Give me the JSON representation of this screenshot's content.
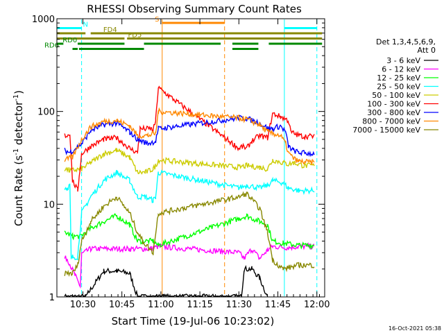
{
  "chart_data": {
    "type": "line",
    "title": "RHESSI Observing Summary Count Rates",
    "xlabel": "Start Time (19-Jul-06 10:23:02)",
    "ylabel_main": "Count Rate (s",
    "ylabel_sup1": "-1",
    "ylabel_mid": " detector",
    "ylabel_sup2": "-1",
    "ylabel_end": ")",
    "yscale": "log",
    "ylim": [
      1,
      1000
    ],
    "xlim_min": [
      -3,
      100
    ],
    "x_ticks": [
      {
        "m": 7,
        "label": "10:30"
      },
      {
        "m": 22,
        "label": "10:45"
      },
      {
        "m": 37,
        "label": "11:00"
      },
      {
        "m": 52,
        "label": "11:15"
      },
      {
        "m": 67,
        "label": "11:30"
      },
      {
        "m": 82,
        "label": "11:45"
      },
      {
        "m": 97,
        "label": "12:00"
      }
    ],
    "y_ticks": [
      {
        "v": 1,
        "label": "1"
      },
      {
        "v": 10,
        "label": "10"
      },
      {
        "v": 100,
        "label": "100"
      },
      {
        "v": 1000,
        "label": "1000"
      }
    ],
    "legend_header": [
      "Det 1,3,4,5,6,9,",
      "Att 0"
    ],
    "legend_position": "right",
    "series": [
      {
        "name": "3 - 6 keV",
        "color": "#000000",
        "values": [
          [
            0,
            1
          ],
          [
            8,
            1
          ],
          [
            9,
            1.1
          ],
          [
            15,
            1.9
          ],
          [
            20,
            1.9
          ],
          [
            25,
            1.8
          ],
          [
            28,
            1.0
          ],
          [
            68,
            1.0
          ],
          [
            69,
            2.0
          ],
          [
            72,
            2.0
          ],
          [
            75,
            1.6
          ],
          [
            78,
            1.0
          ]
        ]
      },
      {
        "name": "6 - 12 keV",
        "color": "#ff00ff",
        "values": [
          [
            0,
            2.6
          ],
          [
            1,
            2.6
          ],
          [
            4,
            1.7
          ],
          [
            6,
            1.3
          ],
          [
            6.5,
            2.9
          ],
          [
            10,
            3.3
          ],
          [
            15,
            3.3
          ],
          [
            25,
            3.3
          ],
          [
            33,
            3.3
          ],
          [
            36,
            3.5
          ],
          [
            67,
            3.0
          ],
          [
            69,
            2.6
          ],
          [
            72,
            3.3
          ],
          [
            75,
            2.6
          ],
          [
            78,
            3.2
          ],
          [
            80,
            3.5
          ],
          [
            86,
            3.4
          ],
          [
            90,
            3.5
          ],
          [
            96,
            3.5
          ]
        ]
      },
      {
        "name": "12 - 25 keV",
        "color": "#00ff00",
        "values": [
          [
            0,
            5
          ],
          [
            3,
            4.5
          ],
          [
            6,
            4.5
          ],
          [
            10,
            5.5
          ],
          [
            15,
            6.5
          ],
          [
            20,
            7.5
          ],
          [
            25,
            6
          ],
          [
            28,
            4
          ],
          [
            30,
            4
          ],
          [
            34,
            4
          ],
          [
            36,
            3.6
          ],
          [
            67,
            7
          ],
          [
            70,
            7.5
          ],
          [
            75,
            6.5
          ],
          [
            78,
            6
          ],
          [
            80,
            4
          ],
          [
            84,
            3.8
          ],
          [
            90,
            3.6
          ],
          [
            96,
            3.6
          ]
        ]
      },
      {
        "name": "25 - 50 keV",
        "color": "#00ffff",
        "values": [
          [
            0,
            15
          ],
          [
            1,
            15
          ],
          [
            2,
            16
          ],
          [
            2.5,
            2.5
          ],
          [
            3,
            2.7
          ],
          [
            5,
            2.7
          ],
          [
            6.5,
            8
          ],
          [
            10,
            12
          ],
          [
            15,
            18
          ],
          [
            20,
            22
          ],
          [
            25,
            18
          ],
          [
            28,
            12
          ],
          [
            31,
            12
          ],
          [
            34,
            11
          ],
          [
            35,
            12
          ],
          [
            36,
            22
          ],
          [
            67,
            15
          ],
          [
            70,
            16
          ],
          [
            75,
            15
          ],
          [
            78,
            16
          ],
          [
            80,
            18
          ],
          [
            84,
            17
          ],
          [
            86,
            15
          ],
          [
            90,
            14
          ],
          [
            96,
            14
          ]
        ]
      },
      {
        "name": "50 - 100 keV",
        "color": "#cccc00",
        "values": [
          [
            0,
            24
          ],
          [
            2,
            23
          ],
          [
            6.5,
            24
          ],
          [
            10,
            28
          ],
          [
            15,
            35
          ],
          [
            20,
            38
          ],
          [
            25,
            32
          ],
          [
            28,
            22
          ],
          [
            31,
            22
          ],
          [
            34,
            24
          ],
          [
            35,
            26
          ],
          [
            36,
            30
          ],
          [
            67,
            25
          ],
          [
            70,
            26
          ],
          [
            75,
            25
          ],
          [
            78,
            24
          ],
          [
            80,
            30
          ],
          [
            84,
            28
          ],
          [
            86,
            27
          ],
          [
            88,
            28
          ],
          [
            92,
            26
          ],
          [
            96,
            26
          ]
        ]
      },
      {
        "name": "100 - 300 keV",
        "color": "#ff0000",
        "values": [
          [
            0,
            55
          ],
          [
            1,
            55
          ],
          [
            2,
            58
          ],
          [
            3,
            18
          ],
          [
            5,
            14
          ],
          [
            6.5,
            35
          ],
          [
            10,
            42
          ],
          [
            15,
            50
          ],
          [
            20,
            52
          ],
          [
            25,
            40
          ],
          [
            28,
            36
          ],
          [
            29,
            65
          ],
          [
            33,
            65
          ],
          [
            34,
            62
          ],
          [
            35,
            80
          ],
          [
            36,
            180
          ],
          [
            67,
            40
          ],
          [
            68,
            42
          ],
          [
            70,
            40
          ],
          [
            72,
            48
          ],
          [
            75,
            55
          ],
          [
            78,
            52
          ],
          [
            80,
            95
          ],
          [
            83,
            88
          ],
          [
            86,
            80
          ],
          [
            87,
            60
          ],
          [
            90,
            55
          ],
          [
            92,
            54
          ],
          [
            96,
            54
          ]
        ]
      },
      {
        "name": "300 - 800 keV",
        "color": "#0000ff",
        "values": [
          [
            0,
            38
          ],
          [
            2,
            36
          ],
          [
            6.5,
            45
          ],
          [
            10,
            62
          ],
          [
            15,
            72
          ],
          [
            20,
            75
          ],
          [
            25,
            60
          ],
          [
            28,
            50
          ],
          [
            32,
            45
          ],
          [
            35,
            48
          ],
          [
            36,
            65
          ],
          [
            67,
            85
          ],
          [
            70,
            84
          ],
          [
            75,
            75
          ],
          [
            78,
            66
          ],
          [
            80,
            65
          ],
          [
            83,
            70
          ],
          [
            85,
            60
          ],
          [
            86,
            42
          ],
          [
            88,
            38
          ],
          [
            90,
            36
          ],
          [
            96,
            35
          ]
        ]
      },
      {
        "name": "800 - 7000 keV",
        "color": "#ff8800",
        "values": [
          [
            0,
            30
          ],
          [
            3,
            32
          ],
          [
            6.5,
            50
          ],
          [
            10,
            68
          ],
          [
            15,
            78
          ],
          [
            20,
            80
          ],
          [
            25,
            70
          ],
          [
            28,
            55
          ],
          [
            32,
            55
          ],
          [
            35,
            58
          ],
          [
            36,
            100
          ],
          [
            67,
            85
          ],
          [
            70,
            82
          ],
          [
            75,
            72
          ],
          [
            78,
            60
          ],
          [
            80,
            58
          ],
          [
            83,
            55
          ],
          [
            85,
            45
          ],
          [
            86,
            36
          ],
          [
            88,
            31
          ],
          [
            90,
            29
          ],
          [
            96,
            28
          ]
        ]
      },
      {
        "name": "7000 - 15000 keV",
        "color": "#888800",
        "values": [
          [
            0,
            1.8
          ],
          [
            3,
            1.8
          ],
          [
            5,
            2.2
          ],
          [
            6.5,
            4
          ],
          [
            10,
            6.5
          ],
          [
            15,
            9.5
          ],
          [
            20,
            12
          ],
          [
            25,
            8
          ],
          [
            28,
            5
          ],
          [
            30,
            4
          ],
          [
            34,
            3
          ],
          [
            36,
            8
          ],
          [
            67,
            12
          ],
          [
            70,
            13
          ],
          [
            75,
            9
          ],
          [
            78,
            5
          ],
          [
            80,
            2.5
          ],
          [
            84,
            2
          ],
          [
            90,
            2.2
          ],
          [
            96,
            2.2
          ]
        ]
      }
    ],
    "flags": [
      {
        "name": "S",
        "color": "#ff8800",
        "level": 1,
        "segments": [
          [
            37.5,
            61.5
          ]
        ],
        "label_at": 35.5
      },
      {
        "name": "N",
        "color": "#00ffff",
        "level": 2,
        "segments": [
          [
            -3,
            6.5
          ],
          [
            84.5,
            97
          ]
        ],
        "label_at": 8
      },
      {
        "name": "FD4",
        "color": "#888800",
        "level": 3,
        "segments": [
          [
            -3,
            8
          ],
          [
            10,
            99
          ]
        ],
        "label_at": 17.5
      },
      {
        "name": "FD5",
        "color": "#888800",
        "level": 4,
        "segments": [
          [
            -3,
            23
          ],
          [
            24,
            99
          ]
        ],
        "label_at": 27
      },
      {
        "name": "RD0",
        "color": "#008800",
        "level": 5,
        "segments": [
          [
            -3,
            -0.5
          ],
          [
            5,
            23
          ],
          [
            30.5,
            60
          ],
          [
            64.5,
            74.5
          ],
          [
            78.5,
            99
          ]
        ],
        "label_at": 2
      },
      {
        "name": "RD6",
        "color": "#008800",
        "level": 6,
        "segments": [
          [
            3,
            5
          ],
          [
            5.5,
            30.5
          ],
          [
            64.5,
            74.5
          ]
        ],
        "label_at": -5
      }
    ],
    "vlines": [
      {
        "m": -3,
        "color": "#00ffff",
        "style": "solid"
      },
      {
        "m": 6.5,
        "color": "#00ffff",
        "style": "dashed"
      },
      {
        "m": 84.5,
        "color": "#00ffff",
        "style": "solid"
      },
      {
        "m": 97,
        "color": "#00ffff",
        "style": "dashed"
      },
      {
        "m": 37.5,
        "color": "#ff8800",
        "style": "solid"
      },
      {
        "m": 61.5,
        "color": "#ff8800",
        "style": "dashed"
      }
    ],
    "timestamp": "16-Oct-2021 05:38"
  }
}
